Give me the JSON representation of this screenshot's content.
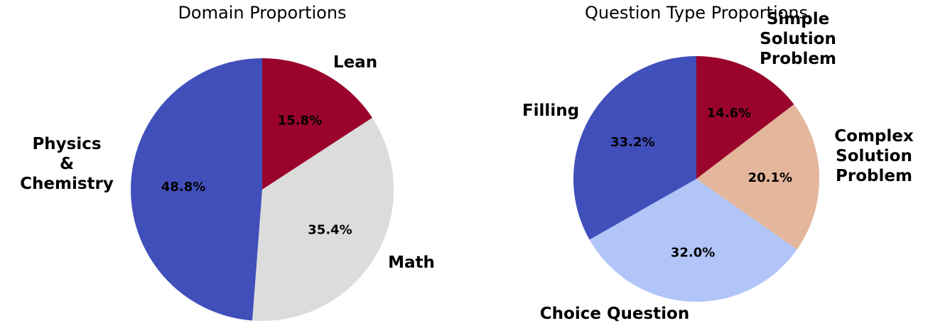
{
  "chart_data": [
    {
      "type": "pie",
      "title": "Domain Proportions",
      "start_angle_deg": 90,
      "direction": "clockwise",
      "slices": [
        {
          "label": [
            "Lean"
          ],
          "value": 15.8,
          "pct_label": "15.8%",
          "color": "#9a032c"
        },
        {
          "label": [
            "Math"
          ],
          "value": 35.4,
          "pct_label": "35.4%",
          "color": "#dcdcdc"
        },
        {
          "label": [
            "Physics",
            "&",
            "Chemistry"
          ],
          "value": 48.8,
          "pct_label": "48.8%",
          "color": "#414fbb"
        }
      ]
    },
    {
      "type": "pie",
      "title": "Question Type Proportions",
      "start_angle_deg": 90,
      "direction": "clockwise",
      "slices": [
        {
          "label": [
            "Simple",
            "Solution",
            "Problem"
          ],
          "value": 14.6,
          "pct_label": "14.6%",
          "color": "#9a032c"
        },
        {
          "label": [
            "Complex",
            "Solution",
            "Problem"
          ],
          "value": 20.1,
          "pct_label": "20.1%",
          "color": "#e4b69c"
        },
        {
          "label": [
            "Choice Question"
          ],
          "value": 32.0,
          "pct_label": "32.0%",
          "color": "#b2c5f8"
        },
        {
          "label": [
            "Filling"
          ],
          "value": 33.2,
          "pct_label": "33.2%",
          "color": "#414fbb"
        }
      ]
    }
  ]
}
